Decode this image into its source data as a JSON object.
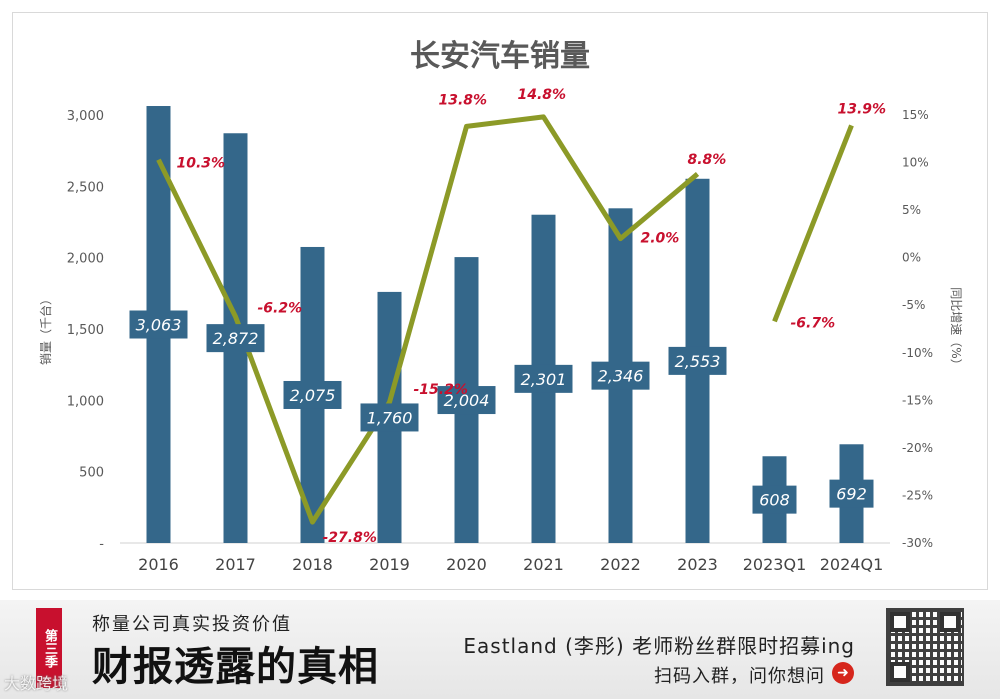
{
  "chart_data": {
    "type": "bar+line",
    "title": "长安汽车销量",
    "categories": [
      "2016",
      "2017",
      "2018",
      "2019",
      "2020",
      "2021",
      "2022",
      "2023",
      "2023Q1",
      "2024Q1"
    ],
    "bar_series": {
      "name": "",
      "values": [
        3063,
        2872,
        2075,
        1760,
        2004,
        2301,
        2346,
        2553,
        608,
        692
      ],
      "labels": [
        "3,063",
        "2,872",
        "2,075",
        "1,760",
        "2,004",
        "2,301",
        "2,346",
        "2,553",
        "608",
        "692"
      ],
      "color": "#34678a"
    },
    "line_series": {
      "name": "",
      "values": [
        10.3,
        -6.2,
        -27.8,
        -15.2,
        13.8,
        14.8,
        2.0,
        8.8,
        -6.7,
        13.9
      ],
      "labels": [
        "10.3%",
        "-6.2%",
        "-27.8%",
        "-15.2%",
        "13.8%",
        "14.8%",
        "2.0%",
        "8.8%",
        "-6.7%",
        "13.9%"
      ],
      "color": "#8c9a27",
      "label_color": "#c8102e",
      "segments": [
        [
          0,
          7
        ],
        [
          8,
          9
        ]
      ]
    },
    "ylabel_left": "销量（千台）",
    "ylabel_right": "同比增速（%）",
    "ylim_left": [
      0,
      3000
    ],
    "yticks_left": [
      0,
      500,
      1000,
      1500,
      2000,
      2500,
      3000
    ],
    "yticklabels_left": [
      "-",
      "500",
      "1,000",
      "1,500",
      "2,000",
      "2,500",
      "3,000"
    ],
    "ylim_right": [
      -30,
      15
    ],
    "yticks_right": [
      -30,
      -25,
      -20,
      -15,
      -10,
      -5,
      0,
      5,
      10,
      15
    ],
    "yticklabels_right": [
      "-30%",
      "-25%",
      "-20%",
      "-15%",
      "-10%",
      "-5%",
      "0%",
      "5%",
      "10%",
      "15%"
    ],
    "grid": false,
    "legend": "none"
  },
  "banner": {
    "season": "第三季",
    "slogan_small": "称量公司真实投资价值",
    "slogan_big": "财报透露的真相",
    "recruit": "Eastland (李彤) 老师粉丝群限时招募ing",
    "scan": "扫码入群，问你想问",
    "arrow_icon": "right-arrow-icon",
    "qr_icon": "qr-code-icon",
    "watermark": "大数跨境"
  }
}
